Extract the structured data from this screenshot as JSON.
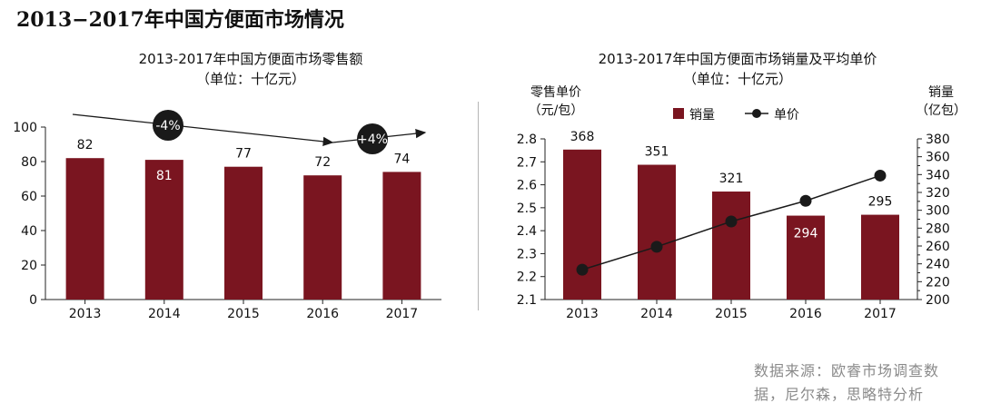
{
  "main_title": "2013−2017年中国方便面市场情况",
  "source": {
    "line1": "数据来源：欧睿市场调查数",
    "line2": "据，尼尔森，思略特分析"
  },
  "colors": {
    "bar": "#7a1520",
    "line": "#1a1a1a",
    "badge": "#1a1a1a"
  },
  "chart_data": [
    {
      "type": "bar",
      "title": "2013-2017年中国方便面市场零售额",
      "subtitle": "（单位：十亿元）",
      "categories": [
        "2013",
        "2014",
        "2015",
        "2016",
        "2017"
      ],
      "values": [
        82,
        81,
        77,
        72,
        74
      ],
      "ylim": [
        0,
        100
      ],
      "yticks": [
        "0",
        "20",
        "40",
        "60",
        "80",
        "100"
      ],
      "grid": false,
      "annotations": [
        {
          "text": "-4%",
          "from": "2013",
          "to": "2016"
        },
        {
          "text": "+4%",
          "from": "2016",
          "to": "2017"
        }
      ]
    },
    {
      "type": "bar+line",
      "title": "2013-2017年中国方便面市场销量及平均单价",
      "subtitle": "（单位：十亿元）",
      "categories": [
        "2013",
        "2014",
        "2015",
        "2016",
        "2017"
      ],
      "series": [
        {
          "name": "销量",
          "type": "bar",
          "axis": "right",
          "values": [
            368,
            351,
            321,
            294,
            295
          ]
        },
        {
          "name": "单价",
          "type": "line",
          "axis": "left",
          "values": [
            2.23,
            2.33,
            2.44,
            2.53,
            2.64
          ]
        }
      ],
      "ylabel_left": [
        "零售单价",
        "（元/包）"
      ],
      "ylabel_right": [
        "销量",
        "（亿包）"
      ],
      "ylim_left": [
        2.1,
        2.8
      ],
      "ylim_right": [
        200,
        380
      ],
      "yticks_left": [
        "2.1",
        "2.2",
        "2.3",
        "2.4",
        "2.5",
        "2.6",
        "2.7",
        "2.8"
      ],
      "yticks_right": [
        "200",
        "220",
        "240",
        "260",
        "280",
        "300",
        "320",
        "340",
        "360",
        "380"
      ],
      "legend": "top"
    }
  ]
}
